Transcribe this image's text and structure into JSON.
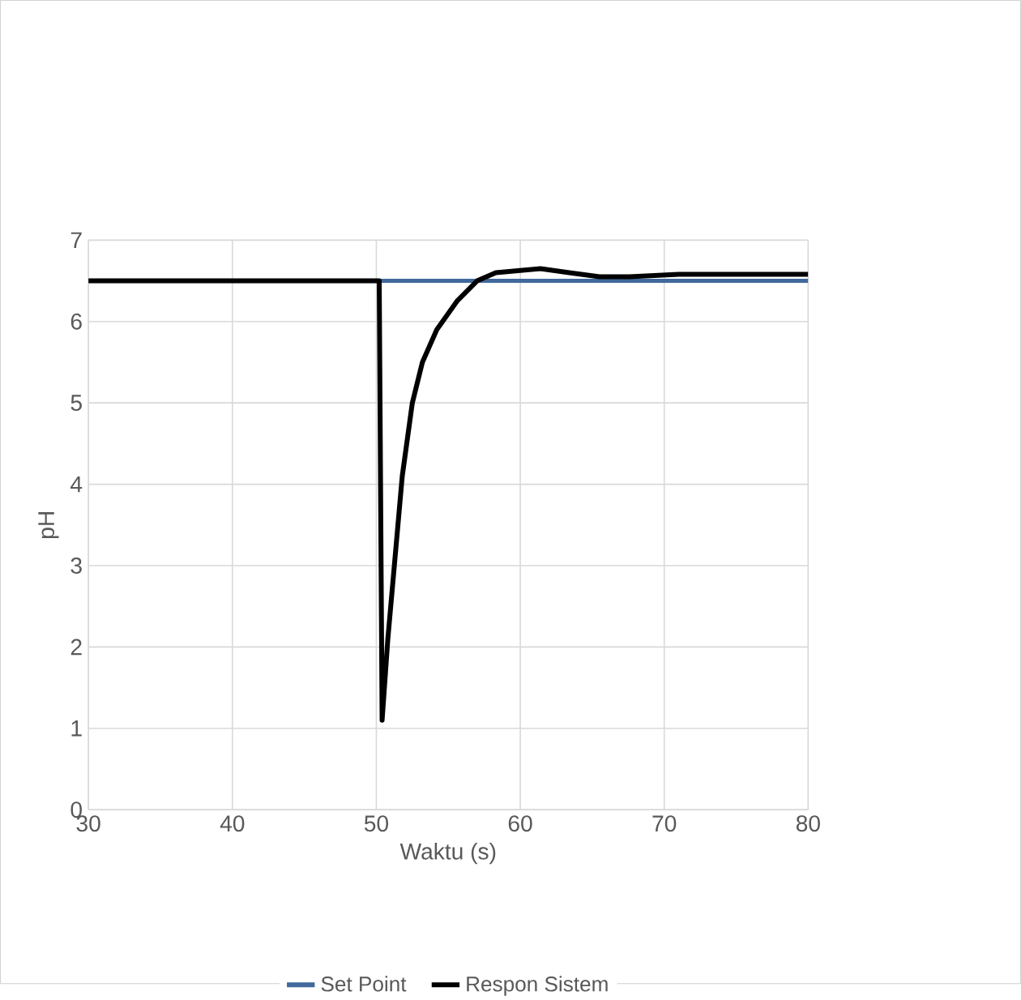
{
  "chart_data": {
    "type": "line",
    "xlabel": "Waktu (s)",
    "ylabel": "pH",
    "xlim": [
      30,
      80
    ],
    "xticks": [
      30,
      40,
      50,
      60,
      70,
      80
    ],
    "ylim": [
      0,
      7
    ],
    "yticks": [
      0,
      1,
      2,
      3,
      4,
      5,
      6,
      7
    ],
    "grid": true,
    "legend": "bottom",
    "series": [
      {
        "name": "Set Point",
        "color": "#41699b",
        "x": [
          30,
          80
        ],
        "values": [
          6.5,
          6.5
        ]
      },
      {
        "name": "Respon Sistem",
        "color": "#000000",
        "x": [
          30,
          50.2,
          50.4,
          50.8,
          51.3,
          51.8,
          52.5,
          53.2,
          54.2,
          55.6,
          57.0,
          58.3,
          61.4,
          63.4,
          65.5,
          67.6,
          71.0,
          80
        ],
        "values": [
          6.5,
          6.5,
          1.1,
          2.1,
          3.1,
          4.1,
          5.0,
          5.5,
          5.9,
          6.25,
          6.5,
          6.6,
          6.65,
          6.6,
          6.55,
          6.55,
          6.58,
          6.58
        ]
      }
    ]
  }
}
